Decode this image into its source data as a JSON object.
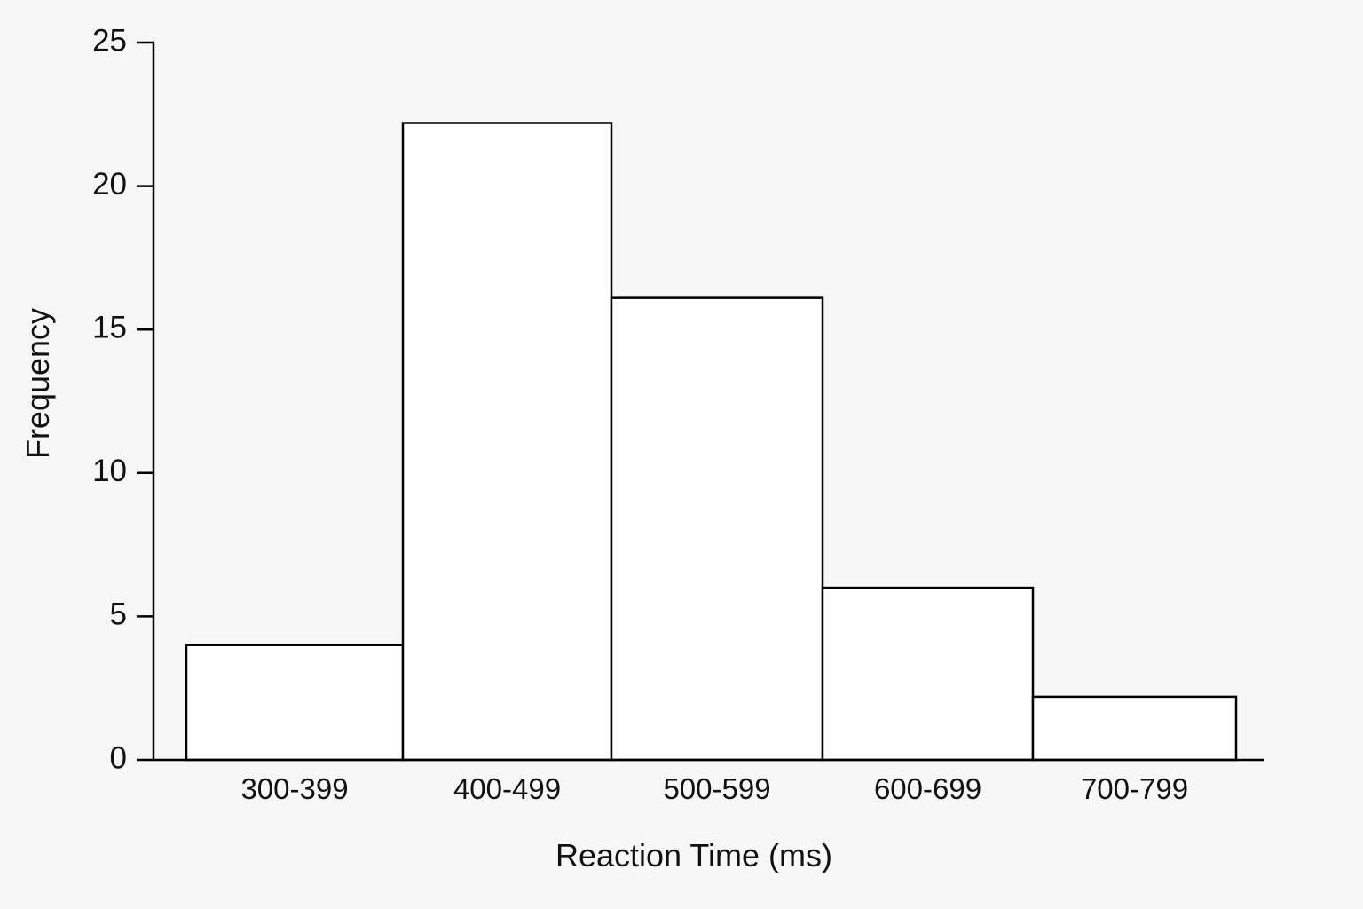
{
  "chart_data": {
    "type": "bar",
    "title": "",
    "xlabel": "Reaction Time (ms)",
    "ylabel": "Frequency",
    "categories": [
      "300-399",
      "400-499",
      "500-599",
      "600-699",
      "700-799"
    ],
    "values": [
      4,
      22.2,
      16.1,
      6,
      2.2
    ],
    "ylim": [
      0,
      25
    ],
    "yticks": [
      "0",
      "5",
      "10",
      "15",
      "20",
      "25"
    ],
    "grid": false,
    "legend": "none"
  }
}
